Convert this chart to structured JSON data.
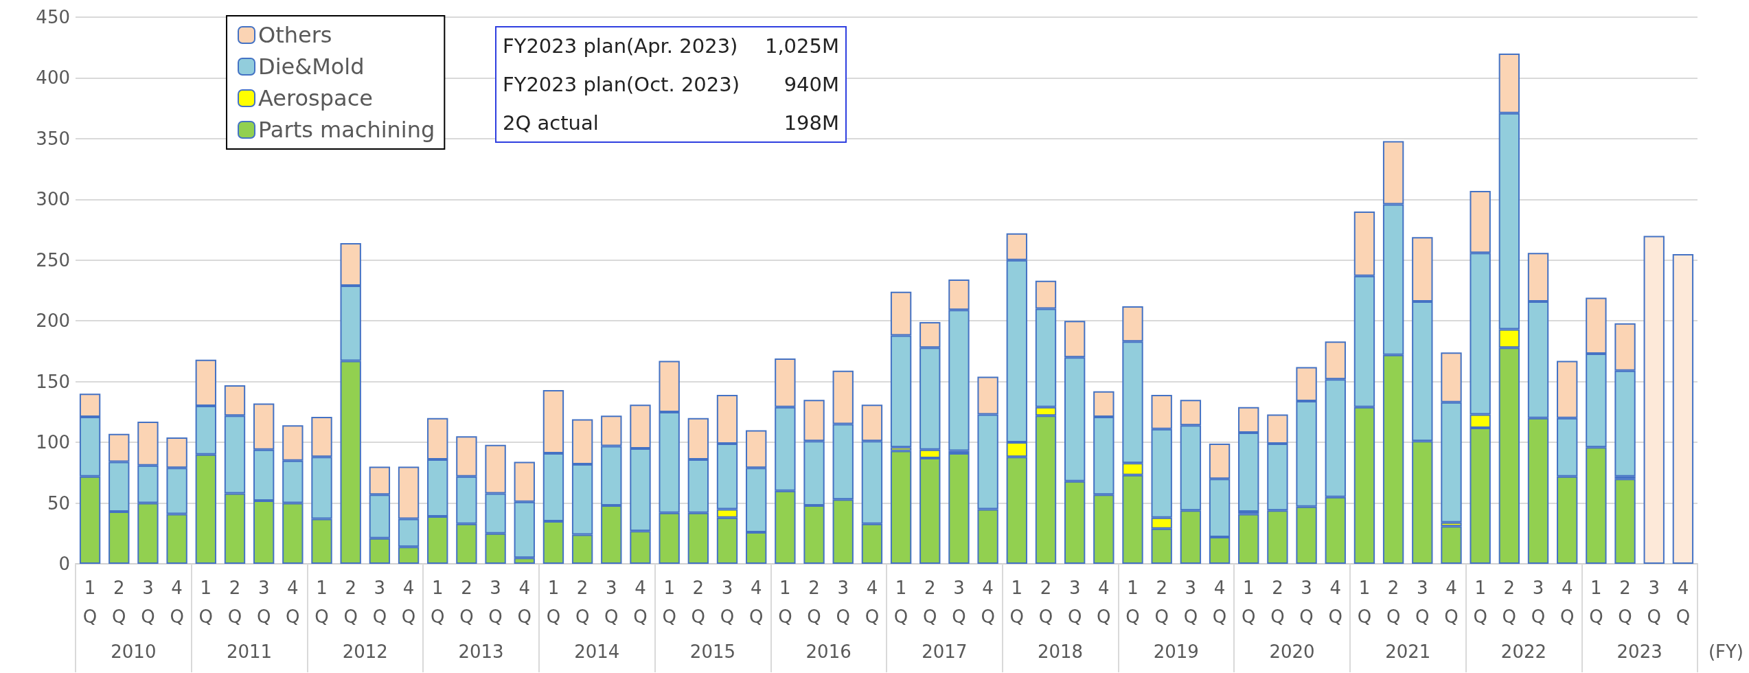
{
  "chart_data": {
    "type": "bar",
    "stacked": true,
    "categories": [
      "1Q",
      "2Q",
      "3Q",
      "4Q",
      "1Q",
      "2Q",
      "3Q",
      "4Q",
      "1Q",
      "2Q",
      "3Q",
      "4Q",
      "1Q",
      "2Q",
      "3Q",
      "4Q",
      "1Q",
      "2Q",
      "3Q",
      "4Q",
      "1Q",
      "2Q",
      "3Q",
      "4Q",
      "1Q",
      "2Q",
      "3Q",
      "4Q",
      "1Q",
      "2Q",
      "3Q",
      "4Q",
      "1Q",
      "2Q",
      "3Q",
      "4Q",
      "1Q",
      "2Q",
      "3Q",
      "4Q",
      "1Q",
      "2Q",
      "3Q",
      "4Q",
      "1Q",
      "2Q",
      "3Q",
      "4Q",
      "1Q",
      "2Q",
      "3Q",
      "4Q",
      "1Q",
      "2Q",
      "3Q",
      "4Q"
    ],
    "series": [
      {
        "name": "Parts machining",
        "color": "#92d050",
        "values": [
          72,
          43,
          50,
          41,
          90,
          58,
          52,
          50,
          37,
          167,
          21,
          14,
          39,
          33,
          25,
          5,
          35,
          24,
          48,
          27,
          42,
          42,
          38,
          26,
          60,
          48,
          53,
          33,
          93,
          87,
          91,
          45,
          88,
          122,
          68,
          57,
          73,
          29,
          44,
          22,
          41,
          44,
          47,
          55,
          129,
          172,
          101,
          31,
          112,
          178,
          120,
          72,
          96,
          70,
          null,
          null
        ]
      },
      {
        "name": "Aerospace",
        "color": "#ffff00",
        "values": [
          null,
          null,
          null,
          null,
          null,
          null,
          null,
          null,
          null,
          null,
          null,
          null,
          null,
          null,
          null,
          null,
          null,
          null,
          null,
          null,
          null,
          null,
          7,
          null,
          null,
          null,
          null,
          null,
          3,
          7,
          2,
          null,
          12,
          7,
          null,
          null,
          10,
          9,
          null,
          null,
          2,
          null,
          null,
          null,
          null,
          null,
          null,
          3,
          11,
          15,
          null,
          null,
          null,
          2,
          null,
          null
        ]
      },
      {
        "name": "Die&Mold",
        "color": "#92cddc",
        "values": [
          49,
          41,
          31,
          38,
          40,
          64,
          42,
          35,
          51,
          62,
          36,
          23,
          47,
          39,
          33,
          46,
          56,
          58,
          49,
          68,
          83,
          44,
          54,
          53,
          69,
          53,
          62,
          68,
          92,
          84,
          116,
          78,
          150,
          81,
          102,
          64,
          100,
          73,
          70,
          48,
          65,
          55,
          87,
          97,
          108,
          124,
          115,
          99,
          133,
          178,
          96,
          48,
          77,
          87,
          null,
          null
        ]
      },
      {
        "name": "Others",
        "color": "#fbd4b4",
        "values": [
          19,
          23,
          36,
          25,
          38,
          25,
          38,
          29,
          33,
          35,
          23,
          43,
          34,
          33,
          40,
          33,
          52,
          37,
          25,
          36,
          42,
          34,
          40,
          31,
          40,
          34,
          44,
          30,
          36,
          21,
          25,
          31,
          22,
          23,
          30,
          21,
          29,
          28,
          21,
          29,
          21,
          24,
          28,
          31,
          53,
          52,
          53,
          41,
          51,
          49,
          40,
          47,
          46,
          39,
          null,
          null
        ]
      },
      {
        "color": "#fde9d9",
        "values": [
          null,
          null,
          null,
          null,
          null,
          null,
          null,
          null,
          null,
          null,
          null,
          null,
          null,
          null,
          null,
          null,
          null,
          null,
          null,
          null,
          null,
          null,
          null,
          null,
          null,
          null,
          null,
          null,
          null,
          null,
          null,
          null,
          null,
          null,
          null,
          null,
          null,
          null,
          null,
          null,
          null,
          null,
          null,
          null,
          null,
          null,
          null,
          null,
          null,
          null,
          null,
          null,
          null,
          null,
          270,
          255
        ]
      }
    ],
    "ylim": [
      0,
      450
    ],
    "yticks": [
      0,
      50,
      100,
      150,
      200,
      250,
      300,
      350,
      400,
      450
    ],
    "grid": "y",
    "legend": "top left",
    "annotations": [
      "2010",
      "2011",
      "2012",
      "2013",
      "2014",
      "2015",
      "2016",
      "2017",
      "2018",
      "2019",
      "2020",
      "2021",
      "2022",
      "2023",
      "(FY)",
      "FY2023 plan(Apr. 2023)",
      "1,025M",
      "FY2023 plan(Oct. 2023)",
      "940M",
      "2Q actual",
      "198M"
    ]
  }
}
